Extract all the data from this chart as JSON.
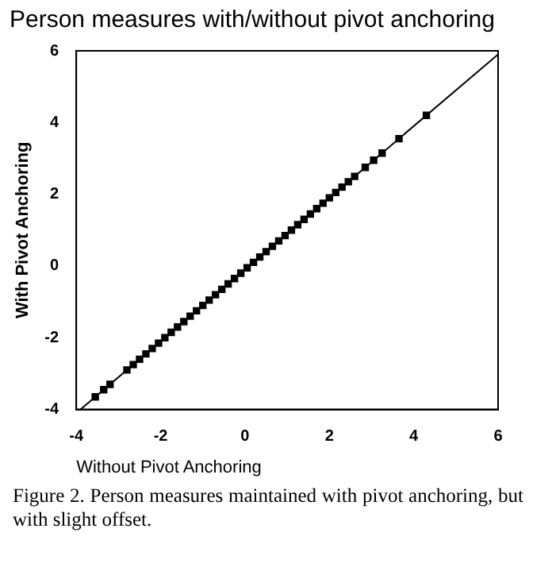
{
  "chart_data": {
    "type": "scatter",
    "title": "Person measures with/without pivot anchoring",
    "xlabel": "Without Pivot Anchoring",
    "ylabel": "With Pivot Anchoring",
    "annotations": [
      "Figure 2. Person measures maintained with pivot anchoring, but with slight offset."
    ],
    "x": [
      -3.55,
      -3.35,
      -3.2,
      -2.8,
      -2.65,
      -2.5,
      -2.35,
      -2.2,
      -2.05,
      -1.9,
      -1.75,
      -1.6,
      -1.45,
      -1.3,
      -1.15,
      -1.0,
      -0.85,
      -0.7,
      -0.55,
      -0.4,
      -0.25,
      -0.1,
      0.05,
      0.2,
      0.35,
      0.5,
      0.65,
      0.8,
      0.95,
      1.1,
      1.25,
      1.4,
      1.55,
      1.7,
      1.85,
      2.0,
      2.15,
      2.3,
      2.45,
      2.6,
      2.85,
      3.05,
      3.25,
      3.65,
      4.3
    ],
    "series": [
      {
        "color": "#000000",
        "marker": "square",
        "values": [
          -3.65,
          -3.45,
          -3.3,
          -2.9,
          -2.75,
          -2.6,
          -2.45,
          -2.3,
          -2.15,
          -2.0,
          -1.85,
          -1.7,
          -1.55,
          -1.4,
          -1.25,
          -1.1,
          -0.95,
          -0.8,
          -0.65,
          -0.5,
          -0.35,
          -0.2,
          -0.05,
          0.1,
          0.25,
          0.4,
          0.55,
          0.7,
          0.85,
          1.0,
          1.15,
          1.3,
          1.45,
          1.6,
          1.75,
          1.9,
          2.05,
          2.2,
          2.35,
          2.5,
          2.75,
          2.95,
          3.15,
          3.55,
          4.2
        ]
      },
      {
        "type": "line",
        "color": "#000000",
        "marker": "none",
        "x": [
          -3.9,
          6
        ],
        "values": [
          -4,
          5.9
        ]
      }
    ],
    "xlim": [
      -4,
      6
    ],
    "xticks": [
      -4,
      -2,
      0,
      2,
      4,
      6
    ],
    "ylim": [
      -4,
      6
    ],
    "yticks": [
      -4,
      -2,
      0,
      2,
      4,
      6
    ],
    "grid": false,
    "legend": false
  }
}
